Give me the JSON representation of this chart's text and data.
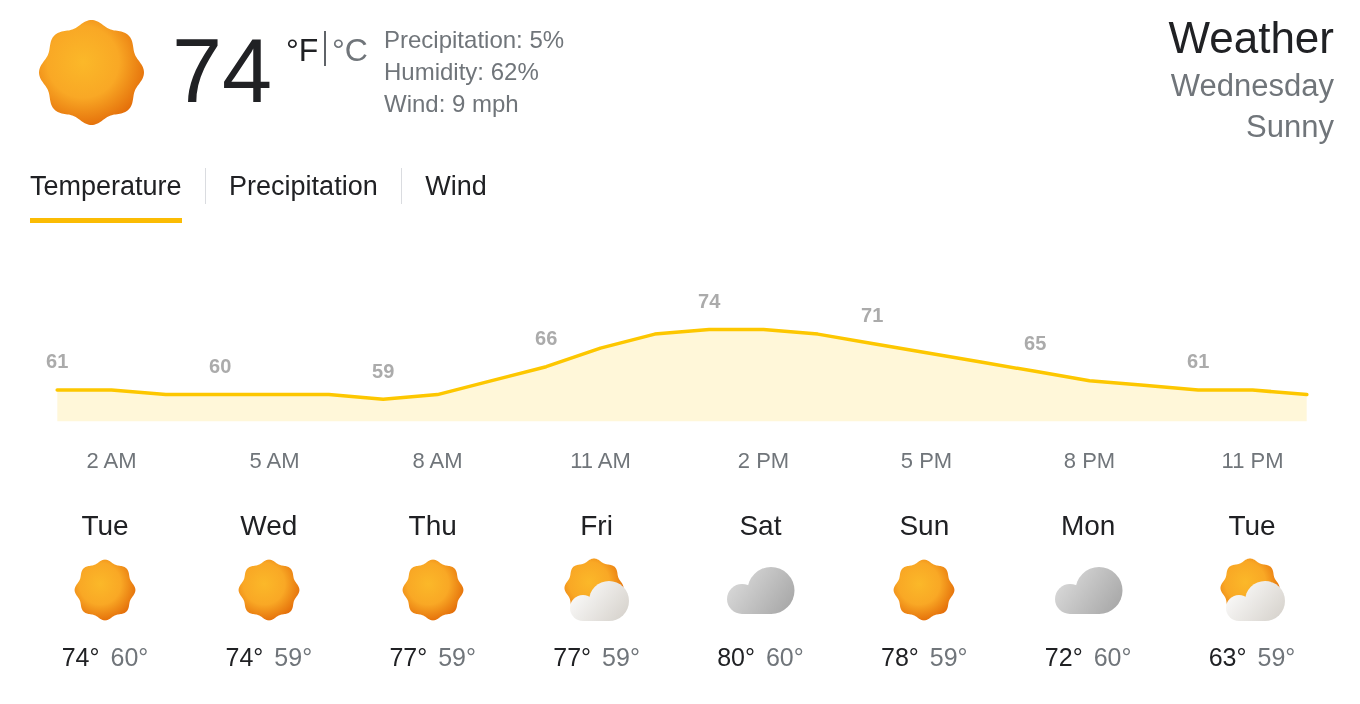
{
  "chart_data": [
    {
      "type": "other",
      "title": "Weather",
      "subtitle": "Wednesday",
      "annotations": [
        "74",
        "°F",
        "°C",
        "Precipitation: 5%",
        "Humidity: 62%",
        "Wind: 9 mph",
        "Sunny",
        "Temperature",
        "Precipitation",
        "Wind"
      ]
    },
    {
      "type": "area",
      "categories": [
        null,
        "2 AM",
        null,
        null,
        "5 AM",
        null,
        null,
        "8 AM",
        null,
        null,
        "11 AM",
        null,
        null,
        "2 PM",
        null,
        null,
        "5 PM",
        null,
        null,
        "8 PM",
        null,
        null,
        "11 PM",
        null
      ],
      "values": [
        61,
        61,
        60,
        60,
        60,
        60,
        59,
        60,
        63,
        66,
        70,
        73,
        74,
        74,
        73,
        71,
        69,
        67,
        65,
        63,
        62,
        61,
        61,
        60
      ],
      "value_labels": [
        "61",
        null,
        null,
        "60",
        null,
        null,
        "59",
        null,
        null,
        "66",
        null,
        null,
        "74",
        null,
        null,
        "71",
        null,
        null,
        "65",
        null,
        null,
        "61",
        null,
        null
      ],
      "color": "#fdc700",
      "tick_labels": "x"
    },
    {
      "type": "other",
      "categories": [
        "Tue",
        "Wed",
        "Thu",
        "Fri",
        "Sat",
        "Sun",
        "Mon",
        "Tue"
      ],
      "series": [
        {
          "color": "#202124",
          "values": [
            74,
            74,
            77,
            77,
            80,
            78,
            72,
            63
          ],
          "value_labels": [
            "74°",
            "74°",
            "77°",
            "77°",
            "80°",
            "78°",
            "72°",
            "63°"
          ]
        },
        {
          "color": "#70757a",
          "values": [
            60,
            59,
            59,
            59,
            60,
            59,
            60,
            59
          ],
          "value_labels": [
            "60°",
            "59°",
            "59°",
            "59°",
            "60°",
            "59°",
            "60°",
            "59°"
          ]
        }
      ]
    }
  ]
}
